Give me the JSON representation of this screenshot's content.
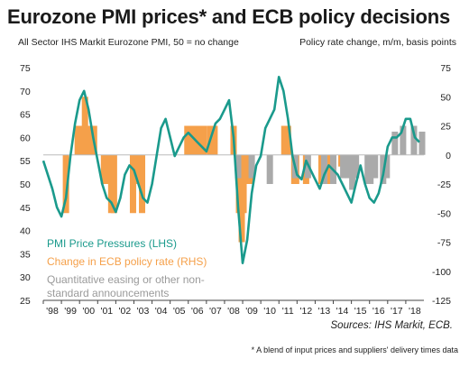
{
  "title": "Eurozone PMI prices* and ECB policy decisions",
  "subtitle_left": "All Sector IHS Markit Eurozone PMI, 50 = no change",
  "subtitle_right": "Policy rate change, m/m, basis points",
  "source": "Sources: IHS Markit, ECB.",
  "footnote": "* A blend of input prices and suppliers' delivery times data",
  "colors": {
    "pmi": "#1a9a8c",
    "policy": "#f5a04a",
    "qe": "#aaaaaa",
    "axis": "#444444"
  },
  "chart_data": {
    "type": "bar",
    "title": "Eurozone PMI prices* and ECB policy decisions",
    "x_ticks": [
      "'98",
      "'99",
      "'00",
      "'01",
      "'02",
      "'03",
      "'04",
      "'05",
      "'06",
      "'07",
      "'08",
      "'09",
      "'10",
      "'11",
      "'12",
      "'13",
      "'14",
      "'15",
      "'16",
      "'17",
      "'18"
    ],
    "y_left": {
      "label": "All Sector IHS Markit Eurozone PMI, 50 = no change",
      "range": [
        25,
        75
      ],
      "ticks": [
        25,
        30,
        35,
        40,
        45,
        50,
        55,
        60,
        65,
        70,
        75
      ]
    },
    "y_right": {
      "label": "Policy rate change, m/m, basis points",
      "range": [
        -125,
        75
      ],
      "ticks": [
        -125,
        -100,
        -75,
        -50,
        -25,
        0,
        25,
        50,
        75
      ]
    },
    "legend": [
      "PMI  Price Pressures (LHS)",
      "Change in ECB policy rate (RHS)",
      "Quantitative easing or other non-standard announcements"
    ],
    "series": [
      {
        "name": "PMI  Price Pressures (LHS)",
        "type": "line",
        "axis": "left",
        "x": [
          1998.0,
          1998.25,
          1998.5,
          1998.75,
          1999.0,
          1999.25,
          1999.5,
          1999.75,
          2000.0,
          2000.25,
          2000.5,
          2000.75,
          2001.0,
          2001.25,
          2001.5,
          2001.75,
          2002.0,
          2002.25,
          2002.5,
          2002.75,
          2003.0,
          2003.25,
          2003.5,
          2003.75,
          2004.0,
          2004.25,
          2004.5,
          2004.75,
          2005.0,
          2005.25,
          2005.5,
          2005.75,
          2006.0,
          2006.25,
          2006.5,
          2006.75,
          2007.0,
          2007.25,
          2007.5,
          2007.75,
          2008.0,
          2008.25,
          2008.5,
          2008.75,
          2009.0,
          2009.25,
          2009.5,
          2009.75,
          2010.0,
          2010.25,
          2010.5,
          2010.75,
          2011.0,
          2011.25,
          2011.5,
          2011.75,
          2012.0,
          2012.25,
          2012.5,
          2012.75,
          2013.0,
          2013.25,
          2013.5,
          2013.75,
          2014.0,
          2014.25,
          2014.5,
          2014.75,
          2015.0,
          2015.25,
          2015.5,
          2015.75,
          2016.0,
          2016.25,
          2016.5,
          2016.75,
          2017.0,
          2017.25,
          2017.5,
          2017.75,
          2018.0,
          2018.25,
          2018.5,
          2018.75
        ],
        "y": [
          55,
          52,
          49,
          45,
          43,
          47,
          56,
          63,
          68,
          70,
          66,
          60,
          55,
          50,
          47,
          46,
          44,
          47,
          52,
          54,
          53,
          50,
          47,
          46,
          50,
          56,
          62,
          64,
          60,
          56,
          58,
          60,
          61,
          60,
          59,
          58,
          57,
          60,
          63,
          64,
          66,
          68,
          60,
          45,
          33,
          38,
          48,
          54,
          56,
          62,
          64,
          66,
          73,
          70,
          64,
          56,
          52,
          51,
          55,
          53,
          51,
          49,
          52,
          54,
          53,
          52,
          50,
          48,
          46,
          50,
          54,
          50,
          47,
          46,
          48,
          52,
          58,
          60,
          60,
          61,
          64,
          64,
          60,
          59
        ]
      },
      {
        "name": "Change in ECB policy rate (RHS)",
        "type": "bar",
        "axis": "right",
        "x": [
          1999.25,
          1999.9,
          2000.1,
          2000.2,
          2000.3,
          2000.45,
          2000.6,
          2000.8,
          2001.35,
          2001.65,
          2001.75,
          2001.9,
          2002.95,
          2003.2,
          2003.45,
          2005.95,
          2006.2,
          2006.45,
          2006.6,
          2006.85,
          2007.2,
          2007.45,
          2008.5,
          2008.8,
          2008.95,
          2009.05,
          2009.25,
          2009.4,
          2011.3,
          2011.5,
          2011.85,
          2011.95,
          2012.5,
          2013.35,
          2013.85,
          2014.45,
          2014.7,
          2015.0,
          2016.2
        ],
        "y": [
          -50,
          25,
          25,
          25,
          50,
          25,
          25,
          25,
          -25,
          -25,
          -50,
          -50,
          -50,
          -25,
          -50,
          25,
          25,
          25,
          25,
          25,
          25,
          25,
          25,
          -50,
          -75,
          -50,
          -25,
          -25,
          25,
          25,
          -25,
          -25,
          -25,
          -25,
          -25,
          -10,
          -10,
          -10,
          -5
        ]
      },
      {
        "name": "Quantitative easing or other non-standard announcements",
        "type": "bar",
        "axis": "right",
        "x": [
          2008.75,
          2009.5,
          2010.5,
          2011.9,
          2012.6,
          2013.5,
          2014.0,
          2014.55,
          2014.8,
          2015.05,
          2015.25,
          2015.9,
          2016.05,
          2016.3,
          2016.75,
          2016.95,
          2017.4,
          2017.85,
          2018.45,
          2018.9
        ],
        "y": [
          -20,
          -20,
          -25,
          -20,
          -20,
          -25,
          -25,
          -20,
          -20,
          -30,
          -20,
          -25,
          -25,
          -20,
          -25,
          -20,
          20,
          25,
          25,
          20
        ]
      }
    ]
  }
}
